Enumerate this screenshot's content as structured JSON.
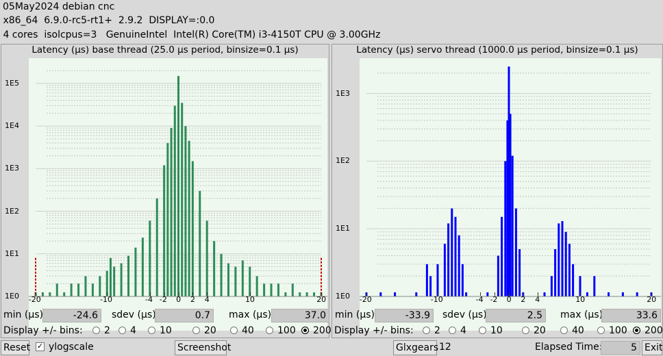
{
  "header": {
    "line1": "05May2024 debian cnc",
    "line2": " x86_64  6.9.0-rc5-rt1+  2.9.2  DISPLAY=:0.0",
    "line3": " 4 cores  isolcpus=3   GenuineIntel  Intel(R) Core(TM) i3-4150T CPU @ 3.00GHz"
  },
  "colors": {
    "base_bar": "#2e8b57",
    "servo_bar": "#0000ff",
    "plot_bg": "#eef8ee",
    "limit_marker": "#cc0000"
  },
  "panels": [
    {
      "id": "base",
      "title": "Latency (µs) base thread (25.0 µs period, binsize=0.1 µs)",
      "stats": {
        "min_label": "min (µs)",
        "min": "-24.6",
        "sdev_label": "sdev (µs)",
        "sdev": "0.7",
        "max_label": "max (µs)",
        "max": "37.0"
      },
      "bins_label": "Display +/- bins:",
      "bins_options": [
        "2",
        "4",
        "10",
        "20",
        "40",
        "100",
        "200"
      ],
      "bins_selected": "200"
    },
    {
      "id": "servo",
      "title": "Latency (µs) servo thread (1000.0 µs period, binsize=0.1 µs)",
      "stats": {
        "min_label": "min (µs)",
        "min": "-33.9",
        "sdev_label": "sdev (µs)",
        "sdev": "2.5",
        "max_label": "max (µs)",
        "max": "33.6"
      },
      "bins_label": "Display +/- bins:",
      "bins_options": [
        "2",
        "4",
        "10",
        "20",
        "40",
        "100",
        "200"
      ],
      "bins_selected": "200"
    }
  ],
  "chart_data": [
    {
      "type": "bar",
      "title": "Latency (µs) base thread (25.0 µs period, binsize=0.1 µs)",
      "yscale": "log",
      "xlim": [
        -20,
        20
      ],
      "x_ticks": [
        "-20",
        "-10",
        "-4",
        "-2",
        "0",
        "2",
        "4",
        "10",
        "20"
      ],
      "y_ticks": [
        "1E0",
        "1E1",
        "1E2",
        "1E3",
        "1E4",
        "1E5"
      ],
      "ylim_decades": [
        0,
        5.4
      ],
      "series": [
        {
          "points": [
            [
              -20,
              1
            ],
            [
              -19,
              1
            ],
            [
              -18,
              1
            ],
            [
              -17,
              2
            ],
            [
              -16,
              1
            ],
            [
              -15,
              2
            ],
            [
              -14,
              2
            ],
            [
              -13,
              3
            ],
            [
              -12,
              2
            ],
            [
              -11,
              3
            ],
            [
              -10,
              4
            ],
            [
              -9.5,
              8
            ],
            [
              -9,
              5
            ],
            [
              -8,
              6
            ],
            [
              -7,
              9
            ],
            [
              -6,
              14
            ],
            [
              -5,
              24
            ],
            [
              -4,
              60
            ],
            [
              -3,
              200
            ],
            [
              -2,
              1200
            ],
            [
              -1.5,
              4000
            ],
            [
              -1,
              9000
            ],
            [
              -0.5,
              30000
            ],
            [
              0,
              150000
            ],
            [
              0.5,
              35000
            ],
            [
              1,
              10000
            ],
            [
              1.5,
              4500
            ],
            [
              2,
              1500
            ],
            [
              3,
              300
            ],
            [
              4,
              60
            ],
            [
              5,
              20
            ],
            [
              6,
              10
            ],
            [
              7,
              6
            ],
            [
              8,
              5
            ],
            [
              9,
              7
            ],
            [
              10,
              5
            ],
            [
              11,
              3
            ],
            [
              12,
              2
            ],
            [
              13,
              2
            ],
            [
              14,
              2
            ],
            [
              15,
              1
            ],
            [
              16,
              2
            ],
            [
              17,
              1
            ],
            [
              18,
              1
            ],
            [
              19,
              1
            ],
            [
              20,
              1
            ]
          ]
        }
      ]
    },
    {
      "type": "bar",
      "title": "Latency (µs) servo thread (1000.0 µs period, binsize=0.1 µs)",
      "yscale": "log",
      "xlim": [
        -20,
        20
      ],
      "x_ticks": [
        "-20",
        "-10",
        "-4",
        "-2",
        "0",
        "2",
        "4",
        "10",
        "20"
      ],
      "y_ticks": [
        "1E0",
        "1E1",
        "1E2",
        "1E3"
      ],
      "ylim_decades": [
        0,
        3.4
      ],
      "series": [
        {
          "points": [
            [
              -20,
              1
            ],
            [
              -18,
              1
            ],
            [
              -16,
              1
            ],
            [
              -13,
              1
            ],
            [
              -11.5,
              3
            ],
            [
              -11,
              2
            ],
            [
              -10,
              3
            ],
            [
              -9,
              6
            ],
            [
              -8.5,
              12
            ],
            [
              -8,
              20
            ],
            [
              -7.5,
              15
            ],
            [
              -7,
              8
            ],
            [
              -6.5,
              3
            ],
            [
              -6,
              1
            ],
            [
              -3,
              1
            ],
            [
              -1.5,
              4
            ],
            [
              -1,
              15
            ],
            [
              -0.5,
              100
            ],
            [
              -0.2,
              400
            ],
            [
              0,
              2500
            ],
            [
              0.2,
              500
            ],
            [
              0.5,
              120
            ],
            [
              1,
              20
            ],
            [
              1.5,
              5
            ],
            [
              2,
              1
            ],
            [
              5,
              1
            ],
            [
              6,
              2
            ],
            [
              6.5,
              5
            ],
            [
              7,
              12
            ],
            [
              7.5,
              13
            ],
            [
              8,
              9
            ],
            [
              8.5,
              6
            ],
            [
              9,
              3
            ],
            [
              10,
              2
            ],
            [
              11,
              1
            ],
            [
              12,
              2
            ],
            [
              14,
              1
            ],
            [
              16,
              1
            ],
            [
              18,
              1
            ],
            [
              20,
              1
            ]
          ]
        }
      ]
    }
  ],
  "bottom": {
    "reset_label": "Reset",
    "ylogscale_label": "ylogscale",
    "ylogscale_checked": true,
    "screenshot_label": "Screenshot",
    "glxgears_label": "Glxgears",
    "glxgears_value": "12",
    "elapsed_label": "Elapsed Time:",
    "elapsed_value": "5",
    "exit_label": "Exit"
  }
}
